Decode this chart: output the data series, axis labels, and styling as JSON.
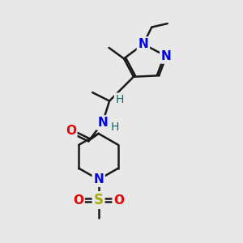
{
  "bg_color": "#e8e8e8",
  "bond_color": "#1a1a1a",
  "bond_width": 1.8,
  "atom_colors": {
    "N_blue": "#0000ee",
    "N_teal": "#007070",
    "O": "#ee0000",
    "S": "#aaaa00",
    "C": "#1a1a1a",
    "H": "#007070"
  },
  "xlim": [
    0,
    10
  ],
  "ylim": [
    0,
    10
  ]
}
